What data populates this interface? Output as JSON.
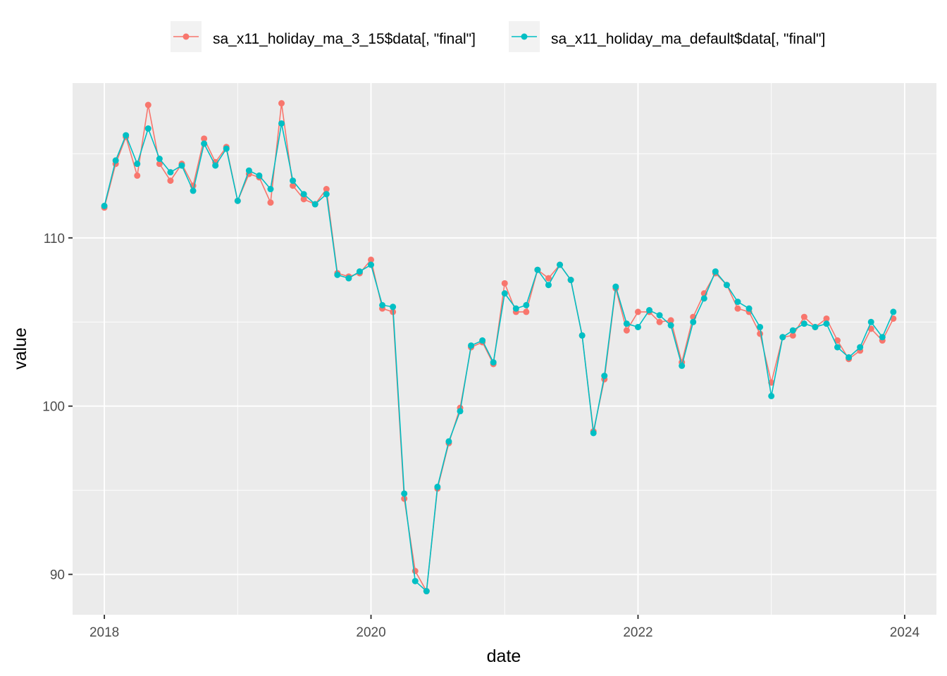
{
  "chart_data": {
    "type": "line",
    "xlabel": "date",
    "ylabel": "value",
    "x_ticks": [
      "2018",
      "2020",
      "2022",
      "2024"
    ],
    "y_ticks": [
      90,
      100,
      110
    ],
    "xlim": [
      "2017-10-06",
      "2024-03-28"
    ],
    "ylim": [
      87.6,
      119.2
    ],
    "grid": true,
    "legend_position": "top",
    "x": [
      "2018-01",
      "2018-02",
      "2018-03",
      "2018-04",
      "2018-05",
      "2018-06",
      "2018-07",
      "2018-08",
      "2018-09",
      "2018-10",
      "2018-11",
      "2018-12",
      "2019-01",
      "2019-02",
      "2019-03",
      "2019-04",
      "2019-05",
      "2019-06",
      "2019-07",
      "2019-08",
      "2019-09",
      "2019-10",
      "2019-11",
      "2019-12",
      "2020-01",
      "2020-02",
      "2020-03",
      "2020-04",
      "2020-05",
      "2020-06",
      "2020-07",
      "2020-08",
      "2020-09",
      "2020-10",
      "2020-11",
      "2020-12",
      "2021-01",
      "2021-02",
      "2021-03",
      "2021-04",
      "2021-05",
      "2021-06",
      "2021-07",
      "2021-08",
      "2021-09",
      "2021-10",
      "2021-11",
      "2021-12",
      "2022-01",
      "2022-02",
      "2022-03",
      "2022-04",
      "2022-05",
      "2022-06",
      "2022-07",
      "2022-08",
      "2022-09",
      "2022-10",
      "2022-11",
      "2022-12",
      "2023-01",
      "2023-02",
      "2023-03",
      "2023-04",
      "2023-05",
      "2023-06",
      "2023-07",
      "2023-08",
      "2023-09",
      "2023-10",
      "2023-11",
      "2023-12"
    ],
    "series": [
      {
        "name": "sa_x11_holiday_ma_3_15$data[, \"final\"]",
        "color": "#F8766D",
        "values": [
          111.8,
          114.4,
          116.0,
          113.7,
          117.9,
          114.4,
          113.4,
          114.4,
          113.1,
          115.9,
          114.5,
          115.4,
          112.2,
          113.8,
          113.6,
          112.1,
          118.0,
          113.1,
          112.3,
          112.0,
          112.9,
          107.9,
          107.7,
          107.9,
          108.7,
          105.8,
          105.6,
          94.5,
          90.2,
          89.0,
          95.1,
          97.8,
          99.9,
          103.5,
          103.8,
          102.5,
          107.3,
          105.6,
          105.6,
          108.1,
          107.6,
          108.4,
          107.5,
          104.2,
          98.5,
          101.6,
          107.0,
          104.5,
          105.6,
          105.6,
          105.0,
          105.1,
          102.6,
          105.3,
          106.7,
          107.9,
          107.2,
          105.8,
          105.6,
          104.3,
          101.4,
          104.1,
          104.2,
          105.3,
          104.7,
          105.2,
          103.9,
          102.8,
          103.3,
          104.6,
          103.9,
          105.2
        ]
      },
      {
        "name": "sa_x11_holiday_ma_default$data[, \"final\"]",
        "color": "#00BFC4",
        "values": [
          111.9,
          114.6,
          116.1,
          114.4,
          116.5,
          114.7,
          113.9,
          114.3,
          112.8,
          115.6,
          114.3,
          115.3,
          112.2,
          114.0,
          113.7,
          112.9,
          116.8,
          113.4,
          112.6,
          112.0,
          112.6,
          107.8,
          107.6,
          108.0,
          108.4,
          106.0,
          105.9,
          94.8,
          89.6,
          89.0,
          95.2,
          97.9,
          99.7,
          103.6,
          103.9,
          102.6,
          106.7,
          105.8,
          106.0,
          108.1,
          107.2,
          108.4,
          107.5,
          104.2,
          98.4,
          101.8,
          107.1,
          104.9,
          104.7,
          105.7,
          105.4,
          104.8,
          102.4,
          105.0,
          106.4,
          108.0,
          107.2,
          106.2,
          105.8,
          104.7,
          100.6,
          104.1,
          104.5,
          104.9,
          104.7,
          104.9,
          103.5,
          102.9,
          103.5,
          105.0,
          104.1,
          105.6
        ]
      }
    ]
  }
}
